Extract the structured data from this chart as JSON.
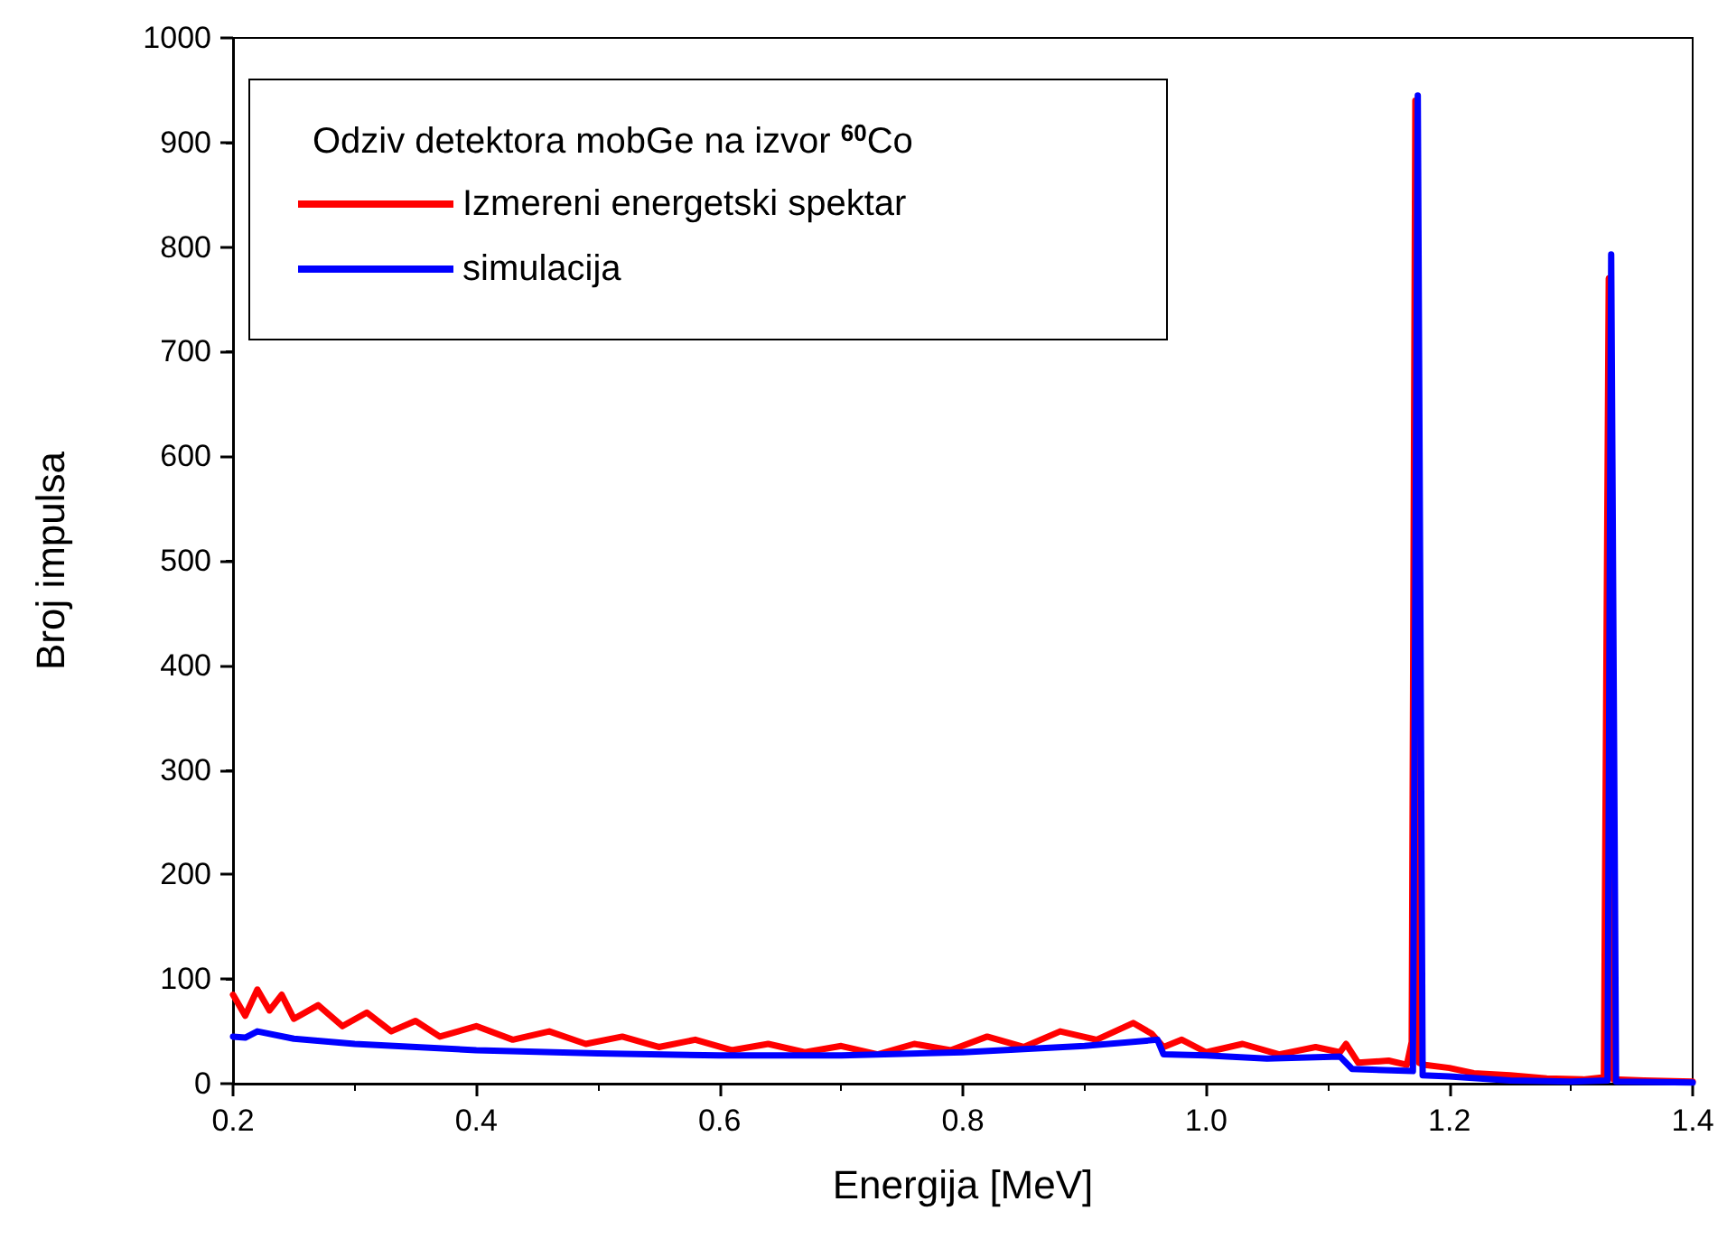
{
  "chart_data": {
    "type": "line",
    "xlabel": "Energija [MeV]",
    "ylabel": "Broj impulsa",
    "legend_title": "Odziv detektora mobGe na izvor $^{60}$Co",
    "legend": "top left",
    "grid": false,
    "marker": "none",
    "line_style": "solid",
    "xlim": [
      0.2,
      1.4
    ],
    "xticks": [
      {
        "value": 0.2,
        "label": "0.2"
      },
      {
        "value": 0.4,
        "label": "0.4"
      },
      {
        "value": 0.6,
        "label": "0.6"
      },
      {
        "value": 0.8,
        "label": "0.8"
      },
      {
        "value": 1.0,
        "label": "1.0"
      },
      {
        "value": 1.2,
        "label": "1.2"
      },
      {
        "value": 1.4,
        "label": "1.4"
      }
    ],
    "ylim": [
      0,
      1000
    ],
    "yticks": [
      0,
      100,
      200,
      300,
      400,
      500,
      600,
      700,
      800,
      900,
      1000
    ],
    "series": [
      {
        "name": "Izmereni energetski spektar",
        "color": "#ff0000",
        "x": [
          0.2,
          0.21,
          0.22,
          0.23,
          0.24,
          0.25,
          0.27,
          0.29,
          0.31,
          0.33,
          0.35,
          0.37,
          0.4,
          0.43,
          0.46,
          0.49,
          0.52,
          0.55,
          0.58,
          0.61,
          0.64,
          0.67,
          0.7,
          0.73,
          0.76,
          0.79,
          0.82,
          0.85,
          0.88,
          0.91,
          0.94,
          0.955,
          0.965,
          0.98,
          1.0,
          1.03,
          1.06,
          1.09,
          1.11,
          1.115,
          1.125,
          1.15,
          1.165,
          1.169,
          1.172,
          1.175,
          1.18,
          1.2,
          1.22,
          1.25,
          1.28,
          1.31,
          1.327,
          1.331,
          1.335,
          1.36,
          1.4
        ],
        "values": [
          85,
          65,
          90,
          70,
          85,
          62,
          75,
          55,
          68,
          50,
          60,
          45,
          55,
          42,
          50,
          38,
          45,
          35,
          42,
          32,
          38,
          30,
          36,
          28,
          38,
          32,
          45,
          35,
          50,
          42,
          58,
          48,
          35,
          42,
          30,
          38,
          28,
          35,
          30,
          38,
          20,
          22,
          18,
          40,
          940,
          20,
          18,
          15,
          10,
          8,
          5,
          4,
          6,
          770,
          4,
          3,
          2
        ]
      },
      {
        "name": "simulacija",
        "color": "#0000ff",
        "x": [
          0.2,
          0.21,
          0.22,
          0.25,
          0.3,
          0.4,
          0.5,
          0.6,
          0.7,
          0.8,
          0.9,
          0.96,
          0.965,
          1.0,
          1.05,
          1.11,
          1.12,
          1.17,
          1.174,
          1.178,
          1.2,
          1.25,
          1.3,
          1.33,
          1.333,
          1.337,
          1.4
        ],
        "values": [
          45,
          44,
          50,
          43,
          38,
          32,
          29,
          27,
          27,
          30,
          36,
          42,
          28,
          27,
          24,
          26,
          14,
          12,
          945,
          8,
          7,
          3,
          2,
          3,
          793,
          2,
          1
        ]
      }
    ]
  }
}
